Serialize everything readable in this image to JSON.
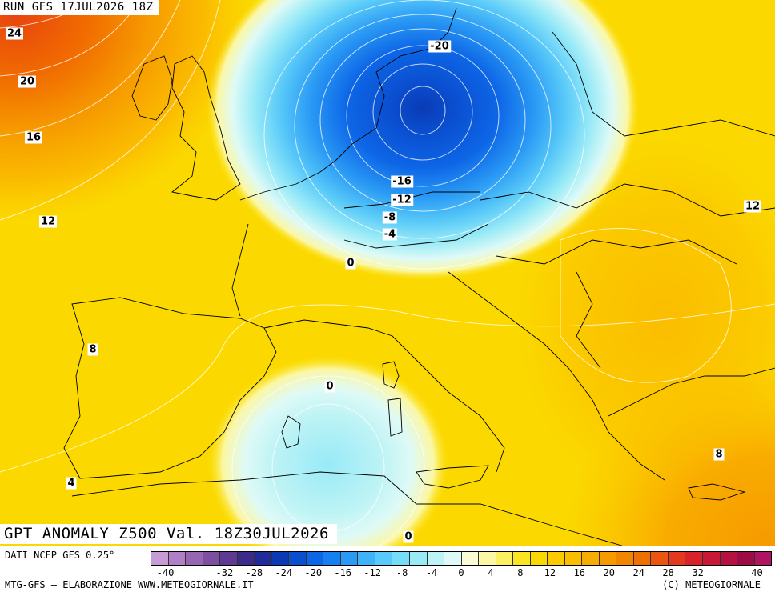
{
  "header": {
    "run_label": "RUN GFS 17JUL2026 18Z"
  },
  "map": {
    "title": "GPT ANOMALY Z500 Val. 18Z30JUL2026",
    "variable": "500 hPa geopotential height anomaly",
    "region": "Europe / Mediterranean",
    "contour_labels": [
      "24",
      "20",
      "16",
      "12",
      "8",
      "4",
      "0",
      "-4",
      "-8",
      "-12",
      "-16",
      "-20",
      "0",
      "0",
      "12",
      "8",
      "8",
      "4"
    ]
  },
  "legend": {
    "data_source": "DATI NCEP GFS 0.25°",
    "scale_min": -42,
    "scale_max": 42,
    "step": 2,
    "tick_labels": [
      "-40",
      "-32",
      "-28",
      "-24",
      "-20",
      "-16",
      "-12",
      "-8",
      "-4",
      "0",
      "4",
      "8",
      "12",
      "16",
      "20",
      "24",
      "28",
      "32",
      "40"
    ],
    "colors": [
      "#c79bd6",
      "#b07fc6",
      "#9766b3",
      "#7c4fa1",
      "#5e3a93",
      "#3d2b8a",
      "#1f2c9a",
      "#0a3bb5",
      "#0a4fd0",
      "#0d66e6",
      "#1680f0",
      "#2a9af5",
      "#3fb3f7",
      "#58c9f8",
      "#76dcf8",
      "#98eaf7",
      "#bdf3f5",
      "#dffaf6",
      "#fbfbd6",
      "#fbf7a4",
      "#fbef62",
      "#fbe522",
      "#fbd900",
      "#fbcb00",
      "#fbbd00",
      "#f9ac00",
      "#f69a00",
      "#f38600",
      "#ef6f00",
      "#ea5510",
      "#e33a1e",
      "#d8232b",
      "#c81838",
      "#b51242",
      "#9e0c48",
      "#b01460"
    ]
  },
  "footer": {
    "credit_left": "MTG-GFS — ELABORAZIONE WWW.METEOGIORNALE.IT",
    "credit_right": "(C) METEOGIORNALE"
  }
}
